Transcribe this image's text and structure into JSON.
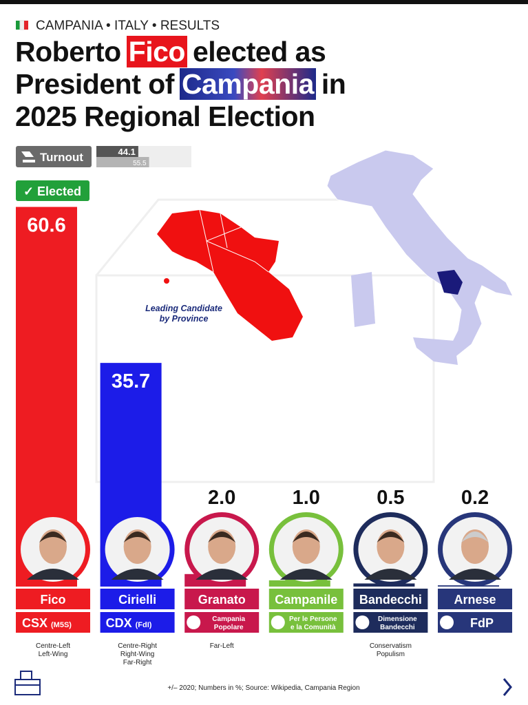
{
  "header": {
    "label": "CAMPANIA • ITALY • RESULTS"
  },
  "title": {
    "lines": [
      [
        "Roberto",
        "Fico",
        "elected as"
      ],
      [
        "President of",
        "Campania",
        "in"
      ],
      [
        "2025 Regional Election"
      ]
    ]
  },
  "turnout": {
    "label": "Turnout",
    "current": 44.1,
    "previous": 55.5
  },
  "map": {
    "label": [
      "Leading Candidate",
      "by Province"
    ]
  },
  "chart_data": {
    "type": "bar",
    "badge": "✓ Elected",
    "categories": [
      "Fico",
      "Cirielli",
      "Granato",
      "Campanile",
      "Bandecchi",
      "Arnese"
    ],
    "values": [
      60.6,
      35.7,
      2.0,
      1.0,
      0.5,
      0.2
    ],
    "value_labels": [
      "60.6",
      "35.7",
      "2.0",
      "1.0",
      "0.5",
      "0.2"
    ],
    "colors": [
      "#ee1c22",
      "#1c1ce8",
      "#c8184c",
      "#78c03c",
      "#1e2c5c",
      "#27367a"
    ],
    "parties": [
      [
        "CSX",
        "(M5S)"
      ],
      [
        "CDX",
        "(FdI)"
      ],
      [
        "Campania",
        "Popolare"
      ],
      [
        "Per le Persone",
        "e la Comunità"
      ],
      [
        "Dimensione",
        "Bandecchi"
      ],
      [
        "FdP"
      ]
    ],
    "ideologies": [
      [
        "Centre-Left",
        "Left-Wing"
      ],
      [
        "Centre-Right",
        "Right-Wing",
        "Far-Right"
      ],
      [
        "Far-Left"
      ],
      [],
      [
        "Conservatism",
        "Populism"
      ],
      []
    ]
  },
  "footer": {
    "source": "+/– 2020; Numbers in %; Source: Wikipedia, Campania Region"
  }
}
